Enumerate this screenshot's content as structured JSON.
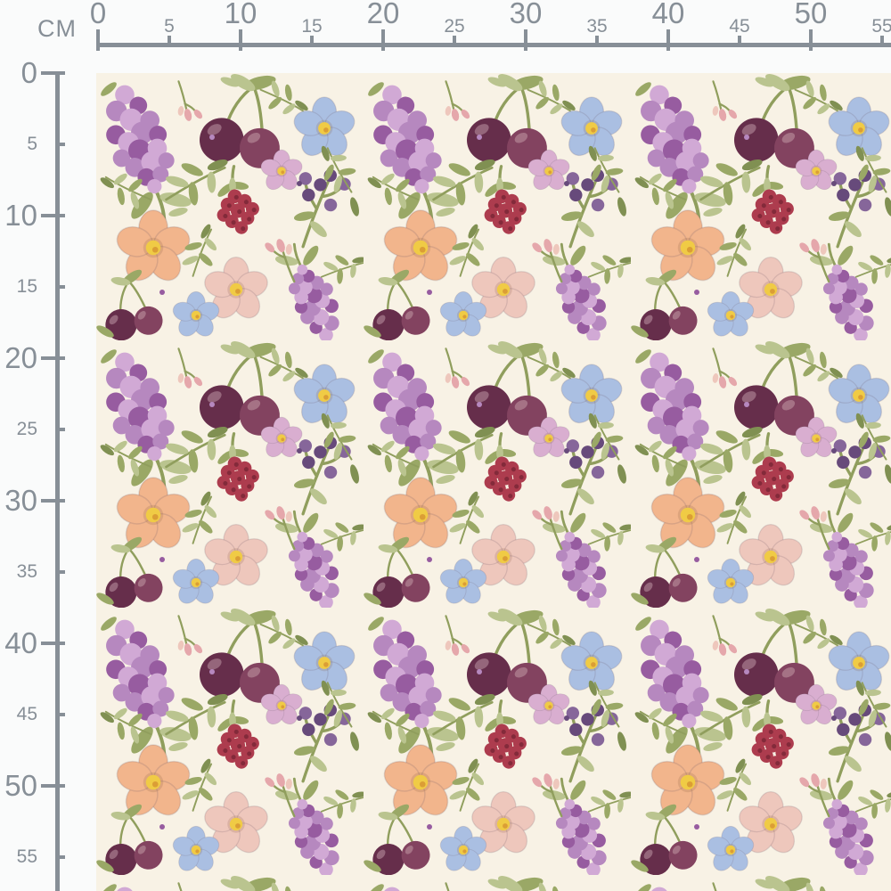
{
  "ruler": {
    "unit_label": "CM",
    "top_labels": [
      "0",
      "5",
      "10",
      "15",
      "20",
      "25",
      "30",
      "35",
      "40",
      "45",
      "50",
      "55"
    ],
    "left_labels": [
      "0",
      "5",
      "10",
      "15",
      "20",
      "25",
      "30",
      "35",
      "40",
      "45",
      "50",
      "55"
    ]
  },
  "fabric": {
    "description": "cream watercolor floral fabric swatch with lilacs, plums, cherries, raspberries, blue and peach flowers, berries and olive leaves"
  },
  "palette": {
    "page_bg": "#fafbfb",
    "ruler_color": "#878f97",
    "fabric_bg": "#f8f2e5",
    "lilac_light": "#cfa6d4",
    "lilac_mid": "#b283bd",
    "lilac_dark": "#91549c",
    "plum_dark": "#5e2342",
    "plum_mid": "#7c3a58",
    "berry_red": "#a93245",
    "berry_red_dark": "#7c1f30",
    "berry_purple": "#5f4175",
    "berry_purple_light": "#7f5f96",
    "blue_petal": "#a6bde2",
    "peach_petal": "#f2b287",
    "pink_petal": "#eec5ba",
    "pink_dark": "#e4a3a8",
    "mauve_petal": "#d7abcf",
    "flower_center": "#f0c93c",
    "flower_center_dark": "#d99a2b",
    "leaf_light": "#b6c28a",
    "leaf_mid": "#95a55f",
    "leaf_dark": "#798b4a",
    "stem": "#8a9a55"
  }
}
